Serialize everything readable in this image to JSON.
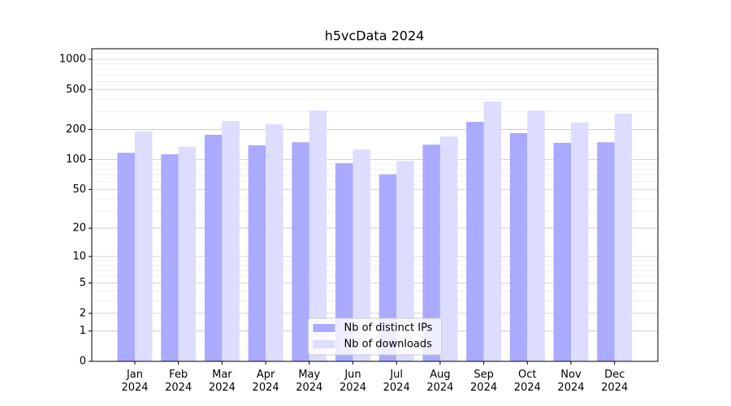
{
  "chart_data": {
    "type": "bar",
    "title": "h5vcData 2024",
    "scale": "log1p",
    "categories": [
      "Jan\n2024",
      "Feb\n2024",
      "Mar\n2024",
      "Apr\n2024",
      "May\n2024",
      "Jun\n2024",
      "Jul\n2024",
      "Aug\n2024",
      "Sep\n2024",
      "Oct\n2024",
      "Nov\n2024",
      "Dec\n2024"
    ],
    "series": [
      {
        "name": "Nb of distinct IPs",
        "color": "#aaaaff",
        "values": [
          117,
          113,
          177,
          139,
          149,
          92,
          71,
          141,
          238,
          184,
          147,
          149
        ]
      },
      {
        "name": "Nb of downloads",
        "color": "#ddddff",
        "values": [
          191,
          134,
          243,
          225,
          309,
          126,
          97,
          170,
          380,
          309,
          234,
          287
        ]
      }
    ],
    "ylim": [
      0,
      1273
    ],
    "yticks": [
      0,
      1,
      2,
      5,
      10,
      20,
      50,
      100,
      200,
      500,
      1000
    ],
    "yticks_minor": [
      3,
      4,
      6,
      7,
      8,
      9,
      30,
      40,
      60,
      70,
      80,
      90,
      300,
      400,
      600,
      700,
      800,
      900
    ],
    "grid": true,
    "legend": "lower center"
  }
}
